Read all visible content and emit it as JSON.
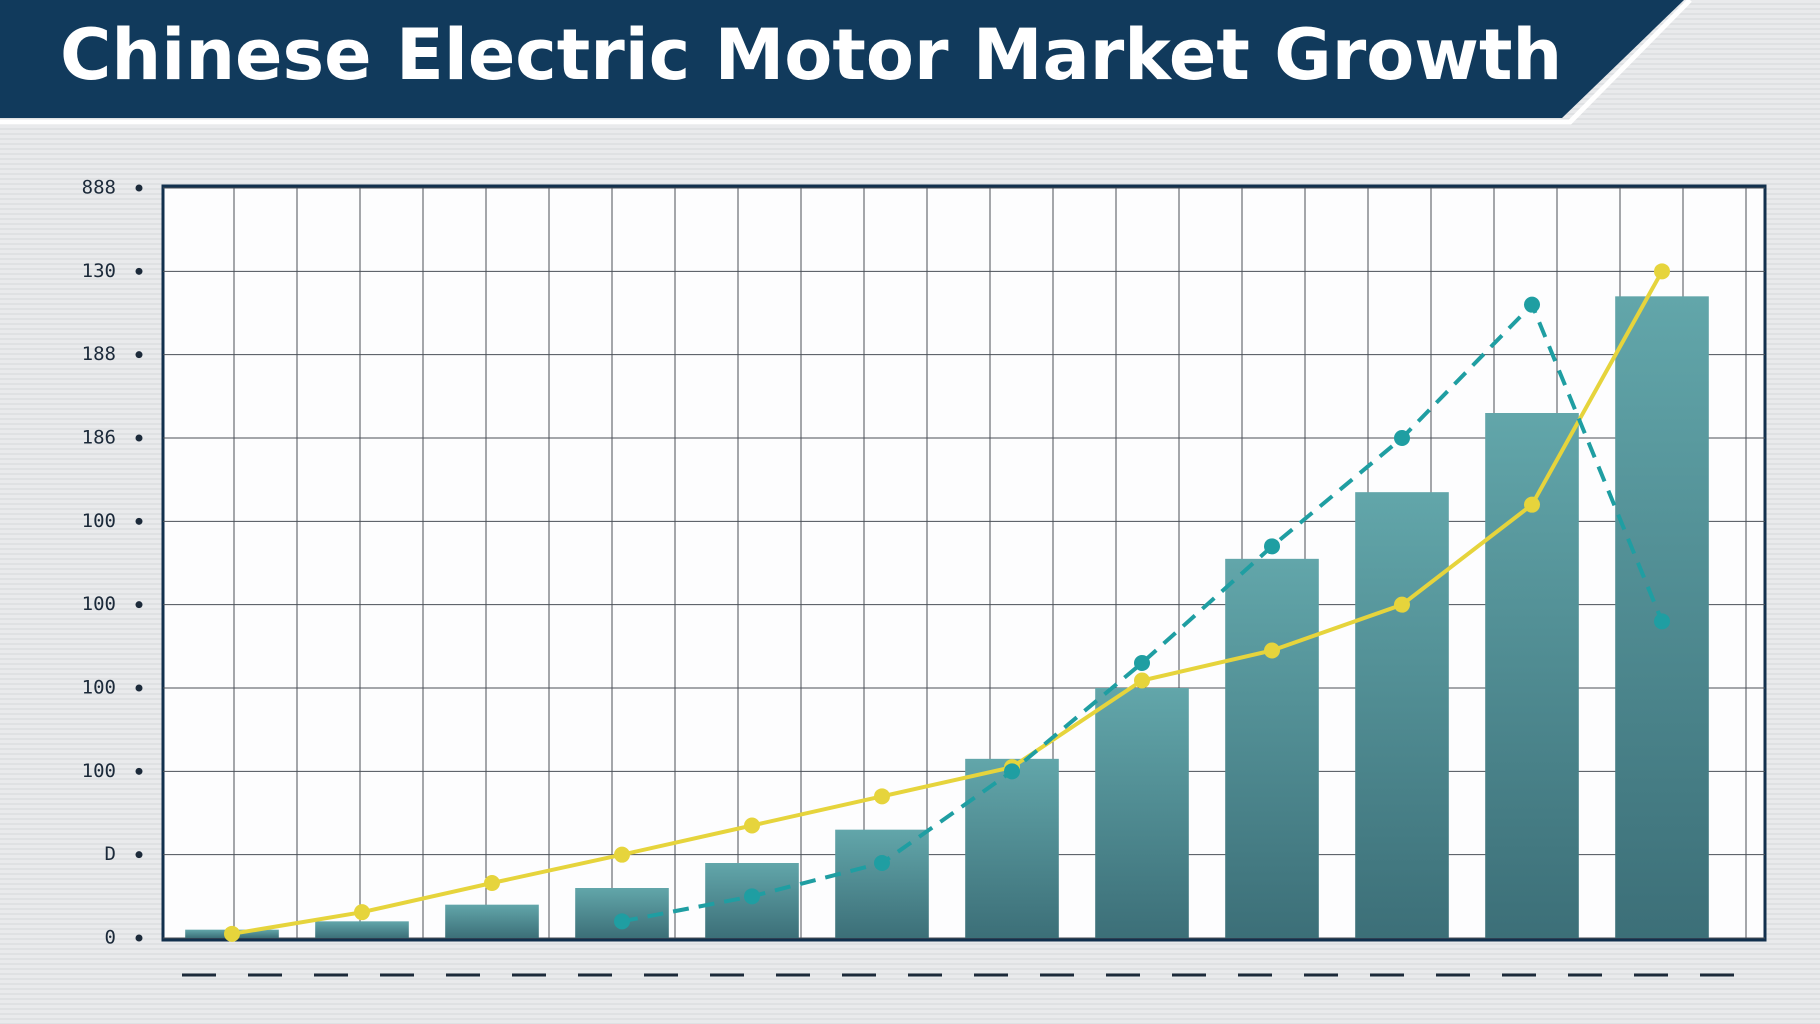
{
  "chart_data": {
    "type": "bar",
    "title": "Chinese Electric Motor Market Growth",
    "categories": [
      null,
      null,
      null,
      null,
      null,
      null,
      null,
      null,
      null,
      null,
      null,
      null
    ],
    "values": [
      10,
      20,
      40,
      60,
      90,
      130,
      215,
      300,
      455,
      535,
      630,
      770
    ],
    "color": "#4f8e95",
    "series": [
      {
        "type": "line",
        "color": "#e6d43c",
        "dashed": false,
        "values": [
          5,
          31,
          66,
          100,
          135,
          170,
          205,
          309,
          345,
          400,
          520,
          800
        ]
      },
      {
        "type": "line",
        "color": "#1f9ea2",
        "dashed": true,
        "values": [
          null,
          null,
          null,
          20,
          50,
          90,
          200,
          330,
          470,
          600,
          760,
          380
        ]
      }
    ],
    "ylim": [
      0,
      900
    ],
    "yticks": [
      0,
      {
        "value": 100,
        "label": "D"
      },
      {
        "value": 200,
        "label": "100"
      },
      {
        "value": 300,
        "label": "100"
      },
      {
        "value": 400,
        "label": "100"
      },
      {
        "value": 500,
        "label": "100"
      },
      {
        "value": 600,
        "label": "186"
      },
      {
        "value": 700,
        "label": "188"
      },
      {
        "value": 800,
        "label": "130"
      },
      {
        "value": 900,
        "label": "888"
      }
    ],
    "grid": true
  }
}
